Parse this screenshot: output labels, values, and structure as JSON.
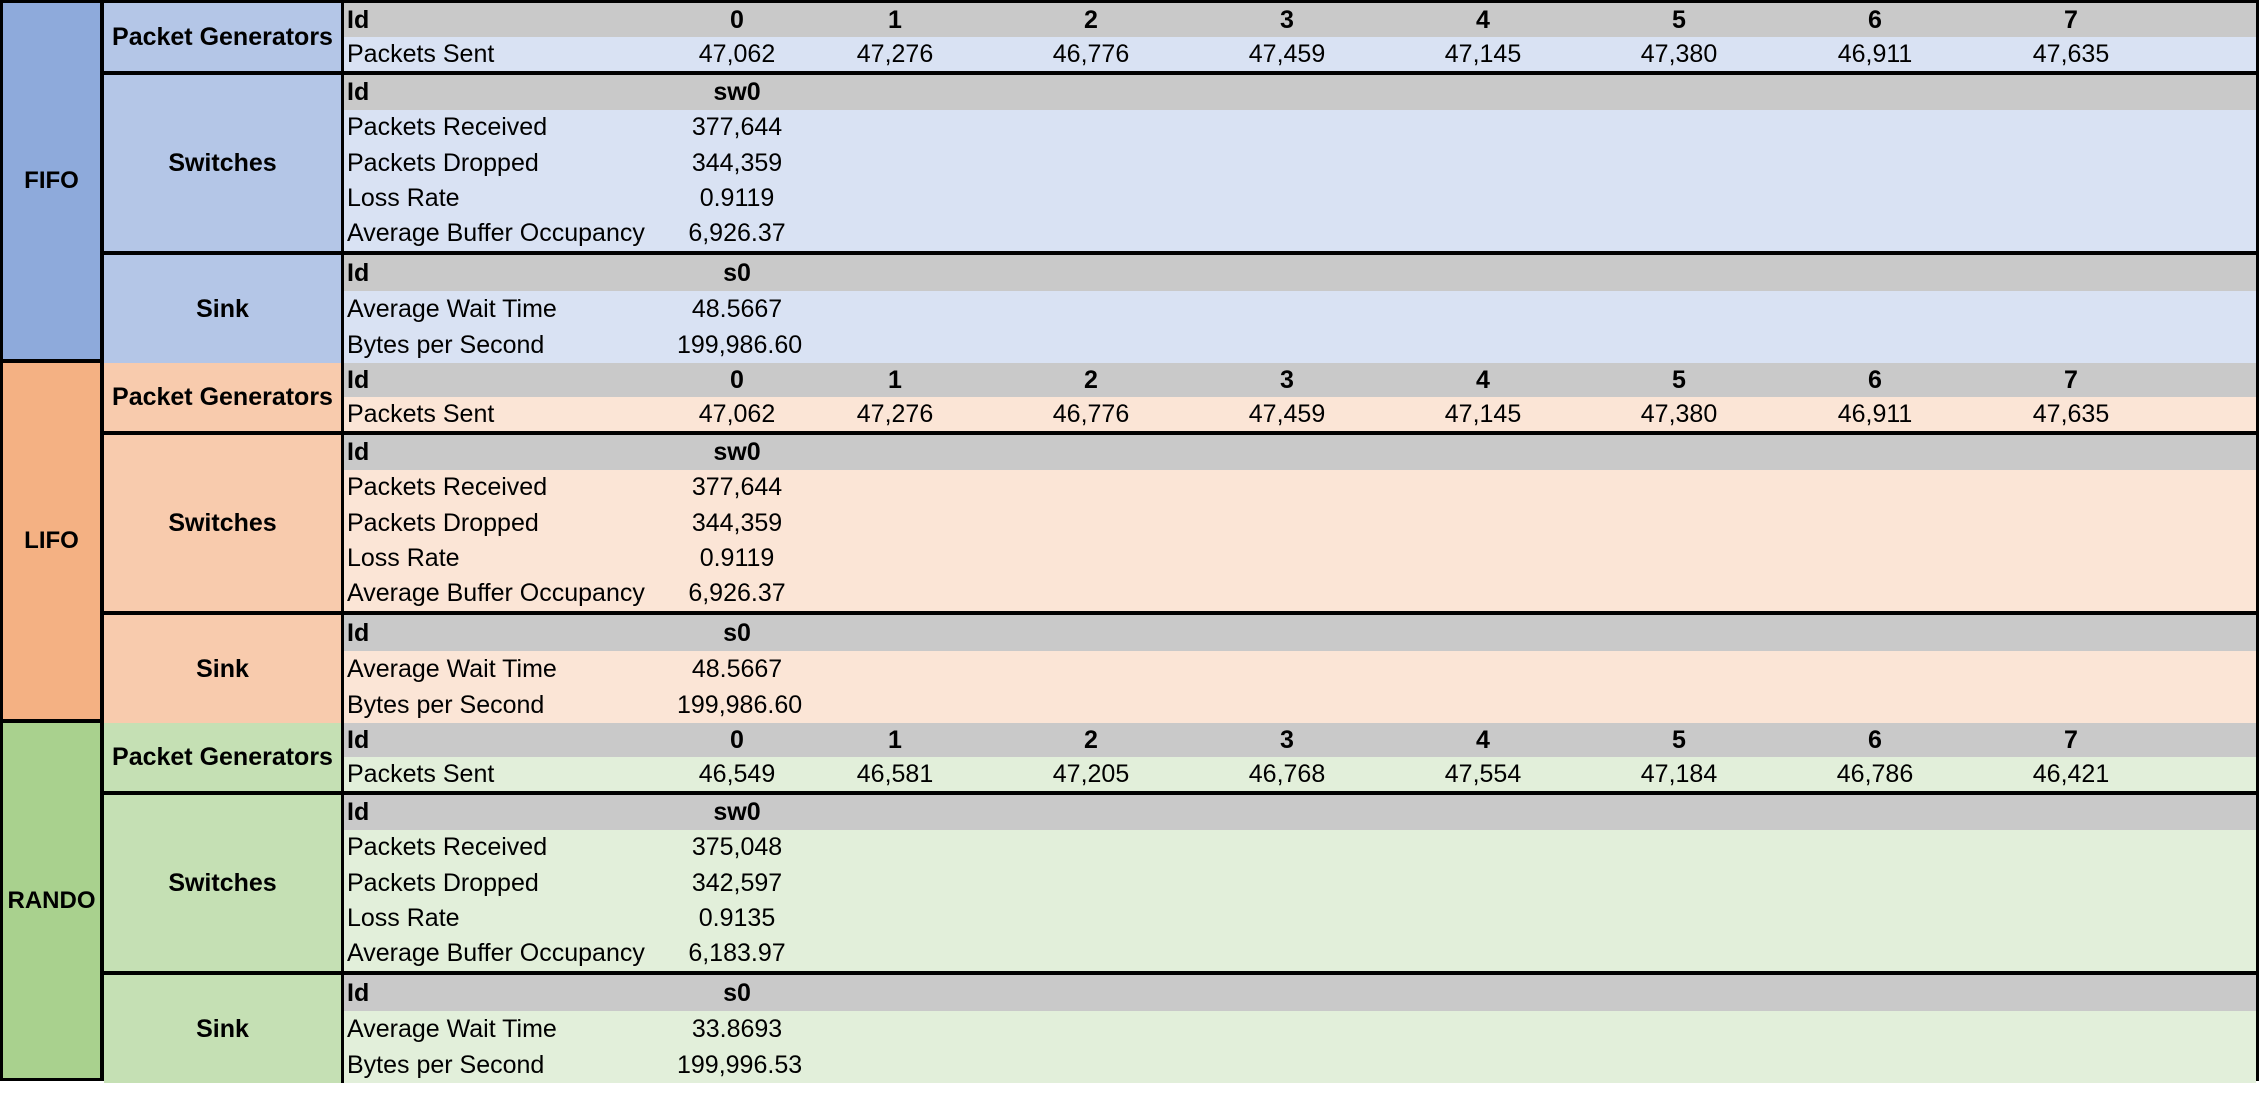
{
  "labels": {
    "id": "Id",
    "packet_generators": "Packet Generators",
    "switches": "Switches",
    "sink": "Sink",
    "packets_sent": "Packets Sent",
    "packets_received": "Packets Received",
    "packets_dropped": "Packets Dropped",
    "loss_rate": "Loss Rate",
    "avg_buffer": "Average Buffer Occupancy",
    "avg_wait": "Average Wait Time",
    "bytes_per_second": "Bytes per Second"
  },
  "colors": {
    "header_row": "#c9c9c9",
    "fifo_algo": "#8eaadb",
    "fifo_section": "#b4c6e7",
    "fifo_row": "#d9e2f3",
    "lifo_algo": "#f4b183",
    "lifo_section": "#f8cbad",
    "lifo_row": "#fbe5d6",
    "rando_algo": "#a9d18e",
    "rando_section": "#c5e0b4",
    "rando_row": "#e2efda"
  },
  "generator_ids": [
    "0",
    "1",
    "2",
    "3",
    "4",
    "5",
    "6",
    "7"
  ],
  "fifo": {
    "name": "FIFO",
    "packets_sent": [
      "47,062",
      "47,276",
      "46,776",
      "47,459",
      "47,145",
      "47,380",
      "46,911",
      "47,635"
    ],
    "switch_id": "sw0",
    "packets_received": "377,644",
    "packets_dropped": "344,359",
    "loss_rate": "0.9119",
    "avg_buffer": "6,926.37",
    "sink_id": "s0",
    "avg_wait": "48.5667",
    "bytes_per_second": "199,986.60"
  },
  "lifo": {
    "name": "LIFO",
    "packets_sent": [
      "47,062",
      "47,276",
      "46,776",
      "47,459",
      "47,145",
      "47,380",
      "46,911",
      "47,635"
    ],
    "switch_id": "sw0",
    "packets_received": "377,644",
    "packets_dropped": "344,359",
    "loss_rate": "0.9119",
    "avg_buffer": "6,926.37",
    "sink_id": "s0",
    "avg_wait": "48.5667",
    "bytes_per_second": "199,986.60"
  },
  "rando": {
    "name": "RANDO",
    "packets_sent": [
      "46,549",
      "46,581",
      "47,205",
      "46,768",
      "47,554",
      "47,184",
      "46,786",
      "46,421"
    ],
    "switch_id": "sw0",
    "packets_received": "375,048",
    "packets_dropped": "342,597",
    "loss_rate": "0.9135",
    "avg_buffer": "6,183.97",
    "sink_id": "s0",
    "avg_wait": "33.8693",
    "bytes_per_second": "199,996.53"
  }
}
